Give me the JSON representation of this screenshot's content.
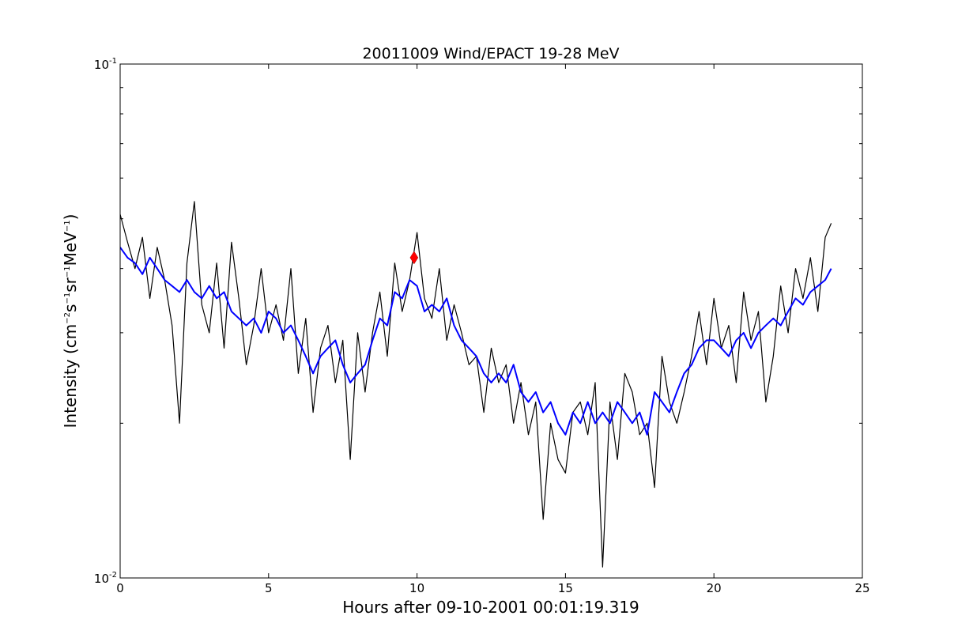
{
  "chart_data": {
    "type": "line",
    "title": "20011009 Wind/EPACT 19-28 MeV",
    "xlabel": "Hours after 09-10-2001 00:01:19.319",
    "ylabel": {
      "prefix": "Intensity (cm",
      "sup1": "−2",
      "mid1": "s",
      "sup2": "−1",
      "mid2": "sr",
      "sup3": "−1",
      "mid3": "MeV",
      "sup4": "−1",
      "suffix": ")"
    },
    "xlim": [
      0,
      25
    ],
    "ylim": [
      0.01,
      0.1
    ],
    "yscale": "log",
    "grid": false,
    "x_ticks": [
      {
        "value": 0,
        "label": "0"
      },
      {
        "value": 5,
        "label": "5"
      },
      {
        "value": 10,
        "label": "10"
      },
      {
        "value": 15,
        "label": "15"
      },
      {
        "value": 20,
        "label": "20"
      },
      {
        "value": 25,
        "label": "25"
      }
    ],
    "y_ticks": [
      {
        "value": 0.01,
        "base": "10",
        "exp": "-2"
      },
      {
        "value": 0.1,
        "base": "10",
        "exp": "-1"
      }
    ],
    "series": [
      {
        "kind": "raw",
        "color": "#000000",
        "x": [
          0,
          0.25,
          0.5,
          0.75,
          1,
          1.25,
          1.5,
          1.75,
          2,
          2.25,
          2.5,
          2.75,
          3,
          3.25,
          3.5,
          3.75,
          4,
          4.25,
          4.5,
          4.75,
          5,
          5.25,
          5.5,
          5.75,
          6,
          6.25,
          6.5,
          6.75,
          7,
          7.25,
          7.5,
          7.75,
          8,
          8.25,
          8.5,
          8.75,
          9,
          9.25,
          9.5,
          9.75,
          10,
          10.25,
          10.5,
          10.75,
          11,
          11.25,
          11.5,
          11.75,
          12,
          12.25,
          12.5,
          12.75,
          13,
          13.25,
          13.5,
          13.75,
          14,
          14.25,
          14.5,
          14.75,
          15,
          15.25,
          15.5,
          15.75,
          16,
          16.25,
          16.5,
          16.75,
          17,
          17.25,
          17.5,
          17.75,
          18,
          18.25,
          18.5,
          18.75,
          19,
          19.25,
          19.5,
          19.75,
          20,
          20.25,
          20.5,
          20.75,
          21,
          21.25,
          21.5,
          21.75,
          22,
          22.25,
          22.5,
          22.75,
          23,
          23.25,
          23.5,
          23.75,
          23.95
        ],
        "values": [
          0.051,
          0.045,
          0.04,
          0.046,
          0.035,
          0.044,
          0.038,
          0.031,
          0.02,
          0.041,
          0.054,
          0.034,
          0.03,
          0.041,
          0.028,
          0.045,
          0.035,
          0.026,
          0.031,
          0.04,
          0.03,
          0.034,
          0.029,
          0.04,
          0.025,
          0.032,
          0.021,
          0.028,
          0.031,
          0.024,
          0.029,
          0.017,
          0.03,
          0.023,
          0.03,
          0.036,
          0.027,
          0.041,
          0.033,
          0.038,
          0.047,
          0.035,
          0.032,
          0.04,
          0.029,
          0.034,
          0.03,
          0.026,
          0.027,
          0.021,
          0.028,
          0.024,
          0.026,
          0.02,
          0.024,
          0.019,
          0.022,
          0.013,
          0.02,
          0.017,
          0.016,
          0.021,
          0.022,
          0.019,
          0.024,
          0.0105,
          0.022,
          0.017,
          0.025,
          0.023,
          0.019,
          0.02,
          0.015,
          0.027,
          0.022,
          0.02,
          0.023,
          0.027,
          0.033,
          0.026,
          0.035,
          0.028,
          0.031,
          0.024,
          0.036,
          0.029,
          0.033,
          0.022,
          0.027,
          0.037,
          0.03,
          0.04,
          0.035,
          0.042,
          0.033,
          0.046,
          0.049
        ]
      },
      {
        "kind": "smoothed",
        "color": "#0000ff",
        "x": [
          0,
          0.25,
          0.5,
          0.75,
          1,
          1.25,
          1.5,
          1.75,
          2,
          2.25,
          2.5,
          2.75,
          3,
          3.25,
          3.5,
          3.75,
          4,
          4.25,
          4.5,
          4.75,
          5,
          5.25,
          5.5,
          5.75,
          6,
          6.25,
          6.5,
          6.75,
          7,
          7.25,
          7.5,
          7.75,
          8,
          8.25,
          8.5,
          8.75,
          9,
          9.25,
          9.5,
          9.75,
          10,
          10.25,
          10.5,
          10.75,
          11,
          11.25,
          11.5,
          11.75,
          12,
          12.25,
          12.5,
          12.75,
          13,
          13.25,
          13.5,
          13.75,
          14,
          14.25,
          14.5,
          14.75,
          15,
          15.25,
          15.5,
          15.75,
          16,
          16.25,
          16.5,
          16.75,
          17,
          17.25,
          17.5,
          17.75,
          18,
          18.25,
          18.5,
          18.75,
          19,
          19.25,
          19.5,
          19.75,
          20,
          20.25,
          20.5,
          20.75,
          21,
          21.25,
          21.5,
          21.75,
          22,
          22.25,
          22.5,
          22.75,
          23,
          23.25,
          23.5,
          23.75,
          23.95
        ],
        "values": [
          0.044,
          0.042,
          0.041,
          0.039,
          0.042,
          0.04,
          0.038,
          0.037,
          0.036,
          0.038,
          0.036,
          0.035,
          0.037,
          0.035,
          0.036,
          0.033,
          0.032,
          0.031,
          0.032,
          0.03,
          0.033,
          0.032,
          0.03,
          0.031,
          0.029,
          0.027,
          0.025,
          0.027,
          0.028,
          0.029,
          0.026,
          0.024,
          0.025,
          0.026,
          0.029,
          0.032,
          0.031,
          0.036,
          0.035,
          0.038,
          0.037,
          0.033,
          0.034,
          0.033,
          0.035,
          0.031,
          0.029,
          0.028,
          0.027,
          0.025,
          0.024,
          0.025,
          0.024,
          0.026,
          0.023,
          0.022,
          0.023,
          0.021,
          0.022,
          0.02,
          0.019,
          0.021,
          0.02,
          0.022,
          0.02,
          0.021,
          0.02,
          0.022,
          0.021,
          0.02,
          0.021,
          0.019,
          0.023,
          0.022,
          0.021,
          0.023,
          0.025,
          0.026,
          0.028,
          0.029,
          0.029,
          0.028,
          0.027,
          0.029,
          0.03,
          0.028,
          0.03,
          0.031,
          0.032,
          0.031,
          0.033,
          0.035,
          0.034,
          0.036,
          0.037,
          0.038,
          0.04
        ]
      }
    ],
    "marker": {
      "x": 9.9,
      "y": 0.042,
      "color": "#ff0000",
      "shape": "diamond"
    }
  }
}
